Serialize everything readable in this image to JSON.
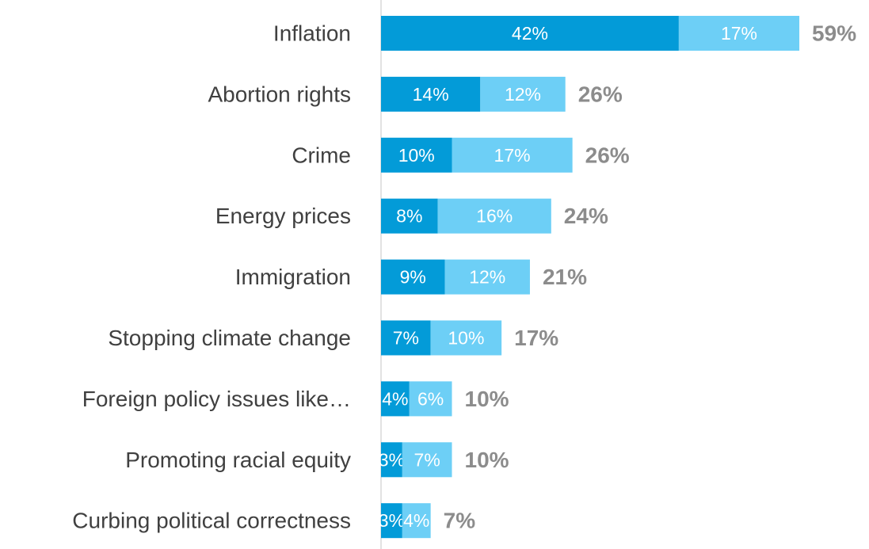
{
  "chart_data": {
    "type": "stacked-bar-horizontal",
    "categories": [
      "Inflation",
      "Abortion rights",
      "Crime",
      "Energy prices",
      "Immigration",
      "Stopping climate change",
      "Foreign policy issues like…",
      "Promoting racial equity",
      "Curbing political correctness"
    ],
    "series": [
      {
        "color": "#039bd8",
        "values": [
          42,
          14,
          10,
          8,
          9,
          7,
          4,
          3,
          3
        ],
        "value_labels": [
          "42%",
          "14%",
          "10%",
          "8%",
          "9%",
          "7%",
          "4%",
          "3%",
          "3%"
        ]
      },
      {
        "color": "#6dcff6",
        "values": [
          17,
          12,
          17,
          16,
          12,
          10,
          6,
          7,
          4
        ],
        "value_labels": [
          "17%",
          "12%",
          "17%",
          "16%",
          "12%",
          "10%",
          "6%",
          "7%",
          "4%"
        ]
      }
    ],
    "totals": [
      59,
      26,
      26,
      24,
      21,
      17,
      10,
      10,
      7
    ],
    "total_labels": [
      "59%",
      "26%",
      "26%",
      "24%",
      "21%",
      "17%",
      "10%",
      "10%",
      "7%"
    ],
    "xlim": [
      0,
      60
    ]
  }
}
